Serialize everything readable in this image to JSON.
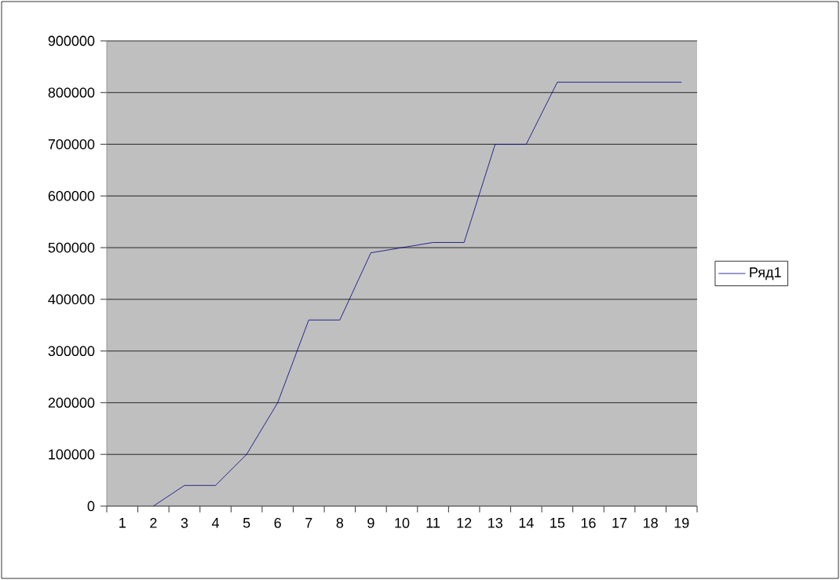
{
  "chart_data": {
    "type": "line",
    "categories": [
      "1",
      "2",
      "3",
      "4",
      "5",
      "6",
      "7",
      "8",
      "9",
      "10",
      "11",
      "12",
      "13",
      "14",
      "15",
      "16",
      "17",
      "18",
      "19"
    ],
    "series": [
      {
        "name": "Ряд1",
        "color": "#000080",
        "values": [
          null,
          0,
          40000,
          40000,
          100000,
          200000,
          360000,
          360000,
          490000,
          500000,
          510000,
          510000,
          700000,
          700000,
          820000,
          820000,
          820000,
          820000,
          820000
        ]
      }
    ],
    "ylim": [
      0,
      900000
    ],
    "yticks": [
      0,
      100000,
      200000,
      300000,
      400000,
      500000,
      600000,
      700000,
      800000,
      900000
    ],
    "grid": "y",
    "legend": "right",
    "marker": "none",
    "line_style": "solid"
  }
}
